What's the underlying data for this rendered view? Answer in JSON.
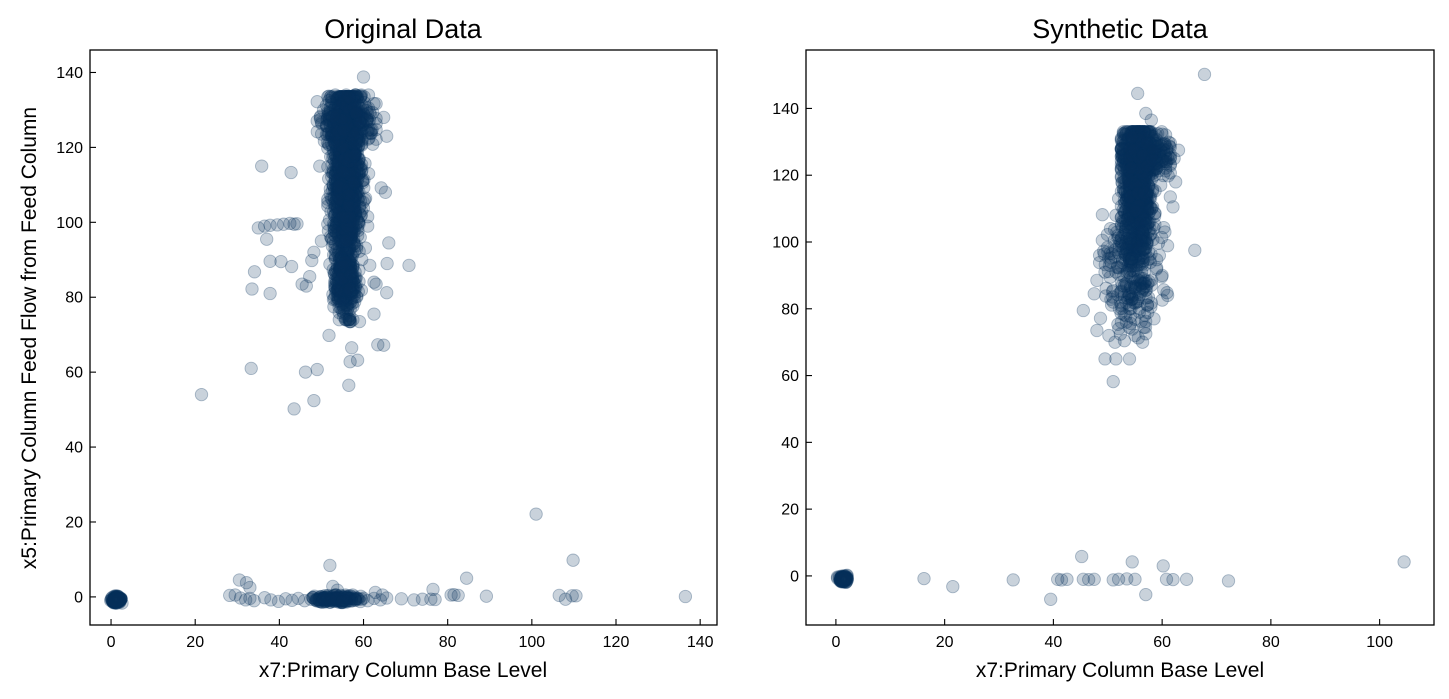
{
  "chart_data": [
    {
      "type": "scatter",
      "title": "Original Data",
      "xlabel": "x7:Primary Column Base Level",
      "ylabel": "x5:Primary Column Feed Flow from Feed Column",
      "xlim": [
        -5,
        144
      ],
      "ylim": [
        -7.5,
        146
      ],
      "xticks": [
        0,
        20,
        40,
        60,
        80,
        100,
        120,
        140
      ],
      "yticks": [
        0,
        20,
        40,
        60,
        80,
        100,
        120,
        140
      ],
      "grid": false,
      "marker_color": "#08315c",
      "marker_alpha": 0.22,
      "series": [
        {
          "points": [
            [
              0.5,
              -0.8
            ],
            [
              1.0,
              -0.5
            ],
            [
              1.5,
              -1.2
            ],
            [
              2.0,
              -0.3
            ],
            [
              0.8,
              0.2
            ],
            [
              1.2,
              -1.5
            ],
            [
              1.8,
              -0.9
            ],
            [
              2.3,
              -0.6
            ],
            [
              0.3,
              -1.1
            ],
            [
              1.6,
              0.1
            ],
            [
              21.5,
              54.0
            ],
            [
              43.5,
              50.2
            ],
            [
              48.2,
              52.4
            ],
            [
              33.3,
              61.0
            ],
            [
              46.2,
              60.0
            ],
            [
              49.0,
              60.7
            ],
            [
              51.8,
              69.8
            ],
            [
              56.5,
              56.5
            ],
            [
              56.8,
              62.8
            ],
            [
              57.2,
              66.5
            ],
            [
              58.6,
              63.2
            ],
            [
              63.4,
              67.3
            ],
            [
              62.5,
              75.5
            ],
            [
              64.8,
              67.2
            ],
            [
              65.5,
              81.2
            ],
            [
              63.0,
              83.5
            ],
            [
              62.5,
              84.0
            ],
            [
              70.8,
              88.5
            ],
            [
              65.6,
              89.0
            ],
            [
              66.0,
              94.5
            ],
            [
              65.2,
              108.0
            ],
            [
              64.2,
              109.2
            ],
            [
              64.8,
              128.0
            ],
            [
              65.5,
              123.0
            ],
            [
              60.0,
              138.8
            ],
            [
              35.8,
              115.0
            ],
            [
              42.8,
              113.3
            ],
            [
              33.5,
              82.2
            ],
            [
              37.8,
              81.0
            ],
            [
              34.1,
              86.8
            ],
            [
              40.4,
              89.5
            ],
            [
              42.9,
              88.2
            ],
            [
              37.8,
              89.6
            ],
            [
              37.0,
              95.5
            ],
            [
              35.0,
              98.5
            ],
            [
              36.5,
              99.0
            ],
            [
              37.8,
              99.2
            ],
            [
              39.5,
              99.3
            ],
            [
              41.0,
              99.5
            ],
            [
              42.5,
              99.7
            ],
            [
              43.5,
              99.5
            ],
            [
              44.2,
              99.6
            ],
            [
              45.4,
              83.5
            ],
            [
              46.4,
              83.0
            ],
            [
              47.2,
              85.5
            ],
            [
              47.7,
              89.8
            ],
            [
              48.2,
              92.0
            ],
            [
              50.0,
              95.0
            ],
            [
              49.6,
              115.0
            ],
            [
              49.8,
              127.5
            ],
            [
              50.5,
              130.0
            ],
            [
              51.8,
              132.5
            ],
            [
              59.0,
              104.0
            ],
            [
              59.5,
              103.0
            ],
            [
              58.8,
              100.0
            ],
            [
              59.2,
              96.0
            ],
            [
              61.0,
              99.0
            ],
            [
              61.2,
              113.0
            ],
            [
              61.5,
              88.5
            ],
            [
              61.0,
              101.5
            ],
            [
              30.5,
              4.5
            ],
            [
              32.2,
              3.8
            ],
            [
              33.0,
              2.5
            ],
            [
              28.2,
              0.4
            ],
            [
              29.5,
              0.5
            ],
            [
              30.8,
              -0.3
            ],
            [
              32.0,
              -0.8
            ],
            [
              33.0,
              -0.4
            ],
            [
              34.0,
              -1.0
            ],
            [
              36.5,
              -0.2
            ],
            [
              38.0,
              -0.8
            ],
            [
              39.8,
              -1.2
            ],
            [
              41.5,
              -0.5
            ],
            [
              43.0,
              -0.9
            ],
            [
              44.5,
              -0.4
            ],
            [
              46.0,
              -1.0
            ],
            [
              47.5,
              -0.6
            ],
            [
              49.0,
              -1.1
            ],
            [
              50.5,
              -0.7
            ],
            [
              52.0,
              -0.9
            ],
            [
              53.5,
              -0.6
            ],
            [
              55.0,
              -1.0
            ],
            [
              56.5,
              -0.5
            ],
            [
              58.0,
              -0.8
            ],
            [
              59.5,
              -0.6
            ],
            [
              61.0,
              -1.0
            ],
            [
              62.5,
              -0.4
            ],
            [
              64.0,
              -0.8
            ],
            [
              65.5,
              -0.3
            ],
            [
              52.0,
              8.4
            ],
            [
              52.7,
              2.8
            ],
            [
              53.8,
              1.8
            ],
            [
              62.8,
              1.2
            ],
            [
              64.5,
              0.5
            ],
            [
              69.0,
              -0.5
            ],
            [
              72.0,
              -0.8
            ],
            [
              74.0,
              -0.6
            ],
            [
              76.0,
              -0.6
            ],
            [
              76.5,
              2.0
            ],
            [
              77.0,
              -0.7
            ],
            [
              80.8,
              0.5
            ],
            [
              81.5,
              0.6
            ],
            [
              82.5,
              0.4
            ],
            [
              84.5,
              5.0
            ],
            [
              89.2,
              0.2
            ],
            [
              101.0,
              22.1
            ],
            [
              106.5,
              0.4
            ],
            [
              108.0,
              -0.6
            ],
            [
              109.8,
              9.8
            ],
            [
              109.6,
              0.3
            ],
            [
              110.5,
              0.3
            ],
            [
              136.5,
              0.1
            ]
          ],
          "clusters": [
            {
              "center": [
                1.2,
                -0.8
              ],
              "spread": [
                0.55,
                0.45
              ],
              "count": 150,
              "x_range": [
                -0.2,
                2.6
              ],
              "y_range": [
                -2.0,
                0.8
              ]
            },
            {
              "center": [
                55.8,
                112.0
              ],
              "spread": [
                1.6,
                13.0
              ],
              "count": 1500,
              "x_range": [
                51.5,
                60.5
              ],
              "y_range": [
                73.5,
                133.5
              ]
            },
            {
              "center": [
                56.0,
                127.0
              ],
              "spread": [
                3.0,
                3.2
              ],
              "count": 350,
              "x_range": [
                49.0,
                63.0
              ],
              "y_range": [
                118.0,
                134.0
              ]
            },
            {
              "center": [
                55.5,
                84.0
              ],
              "spread": [
                1.4,
                4.5
              ],
              "count": 250,
              "x_range": [
                52.0,
                59.5
              ],
              "y_range": [
                74.0,
                95.0
              ]
            },
            {
              "center": [
                53.5,
                -0.6
              ],
              "spread": [
                2.8,
                0.5
              ],
              "count": 150,
              "x_range": [
                48.0,
                60.0
              ],
              "y_range": [
                -1.5,
                0.5
              ]
            }
          ]
        }
      ]
    },
    {
      "type": "scatter",
      "title": "Synthetic Data",
      "xlabel": "x7:Primary Column Base Level",
      "ylabel": "",
      "xlim": [
        -5.5,
        110
      ],
      "ylim": [
        -14.7,
        157.5
      ],
      "xticks": [
        0,
        20,
        40,
        60,
        80,
        100
      ],
      "yticks": [
        0,
        20,
        40,
        60,
        80,
        100,
        120,
        140
      ],
      "grid": false,
      "marker_color": "#08315c",
      "marker_alpha": 0.22,
      "series": [
        {
          "points": [
            [
              16.2,
              -0.8
            ],
            [
              21.5,
              -3.2
            ],
            [
              32.6,
              -1.2
            ],
            [
              39.5,
              -7.0
            ],
            [
              40.8,
              -1.0
            ],
            [
              41.5,
              -1.2
            ],
            [
              42.5,
              -1.0
            ],
            [
              45.2,
              5.8
            ],
            [
              45.5,
              -1.0
            ],
            [
              46.5,
              -1.1
            ],
            [
              47.5,
              -1.0
            ],
            [
              51.0,
              -1.2
            ],
            [
              52.0,
              -1.0
            ],
            [
              53.5,
              -0.9
            ],
            [
              54.5,
              4.2
            ],
            [
              55.0,
              -1.0
            ],
            [
              57.0,
              -5.6
            ],
            [
              60.2,
              3.0
            ],
            [
              60.8,
              -1.0
            ],
            [
              62.0,
              -1.1
            ],
            [
              64.5,
              -1.0
            ],
            [
              72.2,
              -1.5
            ],
            [
              104.5,
              4.2
            ],
            [
              67.8,
              150.2
            ],
            [
              55.5,
              144.5
            ],
            [
              57.0,
              138.5
            ],
            [
              58.0,
              136.5
            ],
            [
              66.0,
              97.5
            ],
            [
              63.0,
              127.5
            ],
            [
              62.5,
              118.0
            ],
            [
              62.0,
              110.5
            ],
            [
              61.0,
              84.0
            ],
            [
              60.5,
              103.0
            ],
            [
              60.0,
              90.0
            ],
            [
              59.5,
              96.0
            ],
            [
              58.5,
              77.0
            ],
            [
              57.0,
              72.5
            ],
            [
              55.0,
              72.0
            ],
            [
              54.0,
              65.0
            ],
            [
              51.5,
              65.0
            ],
            [
              49.5,
              65.0
            ],
            [
              51.0,
              58.2
            ],
            [
              48.0,
              73.5
            ],
            [
              50.2,
              72.0
            ],
            [
              45.5,
              79.5
            ],
            [
              47.5,
              84.5
            ],
            [
              48.0,
              88.5
            ],
            [
              49.5,
              91.0
            ],
            [
              48.5,
              96.0
            ],
            [
              49.0,
              100.5
            ],
            [
              50.5,
              104.0
            ],
            [
              51.5,
              108.0
            ],
            [
              52.0,
              113.0
            ],
            [
              53.0,
              118.0
            ],
            [
              50.0,
              97.0
            ],
            [
              51.0,
              82.0
            ],
            [
              52.5,
              76.0
            ],
            [
              61.5,
              113.5
            ],
            [
              62.2,
              125.0
            ],
            [
              60.8,
              124.0
            ]
          ],
          "clusters": [
            {
              "center": [
                1.3,
                -0.9
              ],
              "spread": [
                0.45,
                0.45
              ],
              "count": 100,
              "x_range": [
                0.3,
                2.4
              ],
              "y_range": [
                -2.0,
                0.3
              ]
            },
            {
              "center": [
                55.5,
                116.0
              ],
              "spread": [
                1.3,
                10.5
              ],
              "count": 900,
              "x_range": [
                52.5,
                59.0
              ],
              "y_range": [
                83.0,
                133.0
              ]
            },
            {
              "center": [
                56.5,
                126.0
              ],
              "spread": [
                2.3,
                3.0
              ],
              "count": 350,
              "x_range": [
                52.5,
                61.5
              ],
              "y_range": [
                117.0,
                133.0
              ]
            },
            {
              "center": [
                54.5,
                90.0
              ],
              "spread": [
                2.6,
                9.0
              ],
              "count": 220,
              "x_range": [
                48.5,
                61.0
              ],
              "y_range": [
                70.0,
                110.0
              ]
            }
          ]
        }
      ]
    }
  ]
}
